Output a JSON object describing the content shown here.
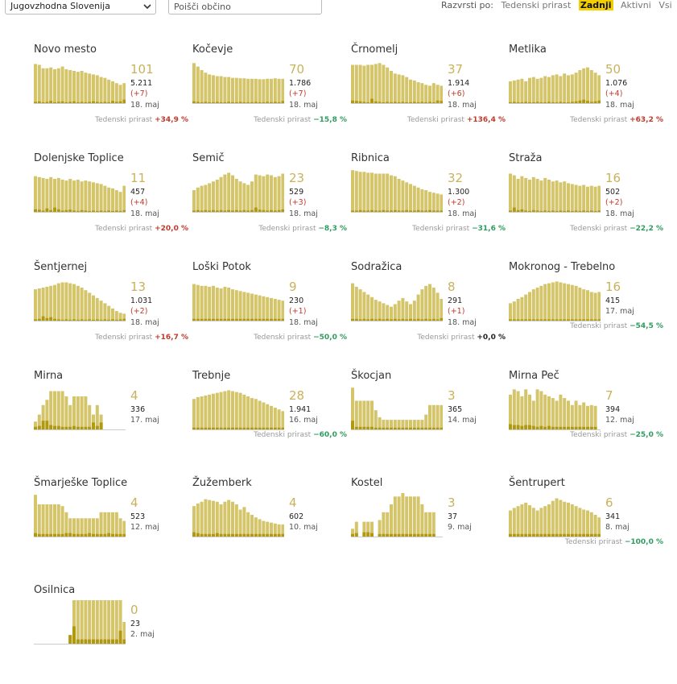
{
  "toolbar": {
    "region": "Jugovzhodna Slovenija",
    "search_placeholder": "Poišči občino",
    "sort_label": "Razvrsti po:",
    "sort_options": [
      {
        "label": "Tedenski prirast",
        "active": false
      },
      {
        "label": "Zadnji",
        "active": true
      },
      {
        "label": "Aktivni",
        "active": false
      },
      {
        "label": "Vsi",
        "active": false
      }
    ]
  },
  "colors": {
    "bar": "#d4c46a",
    "bar_dark": "#b0980f",
    "accent": "#f2cf00",
    "positive": "#c0392b",
    "negative": "#2e9c5e"
  },
  "growth_label": "Tedenski prirast",
  "municipalities": [
    {
      "name": "Novo mesto",
      "active": "101",
      "total": "5.211",
      "delta": "(+7)",
      "date": "18. maj",
      "growth": "+34,9 %",
      "growth_sign": "pos",
      "bars": [
        90,
        88,
        80,
        80,
        82,
        78,
        80,
        84,
        78,
        76,
        74,
        72,
        74,
        70,
        68,
        66,
        64,
        60,
        58,
        54,
        50,
        46,
        42,
        46
      ],
      "new": [
        3,
        4,
        2,
        3,
        5,
        2,
        3,
        4,
        2,
        3,
        4,
        2,
        3,
        2,
        3,
        4,
        3,
        2,
        3,
        2,
        5,
        3,
        4,
        8
      ]
    },
    {
      "name": "Kočevje",
      "active": "70",
      "total": "1.786",
      "delta": "(+7)",
      "date": "18. maj",
      "growth": "−15,8 %",
      "growth_sign": "neg",
      "bars": [
        92,
        84,
        76,
        70,
        66,
        64,
        62,
        62,
        60,
        60,
        58,
        58,
        57,
        57,
        56,
        56,
        56,
        55,
        55,
        56,
        56,
        57,
        56,
        56
      ],
      "new": [
        4,
        3,
        2,
        3,
        2,
        2,
        3,
        2,
        2,
        3,
        2,
        2,
        3,
        2,
        2,
        2,
        3,
        2,
        2,
        3,
        2,
        3,
        2,
        5
      ]
    },
    {
      "name": "Črnomelj",
      "active": "37",
      "total": "1.914",
      "delta": "(+6)",
      "date": "18. maj",
      "growth": "+136,4 %",
      "growth_sign": "pos",
      "bars": [
        88,
        88,
        88,
        86,
        88,
        88,
        90,
        92,
        88,
        82,
        74,
        68,
        66,
        64,
        60,
        54,
        52,
        48,
        46,
        42,
        40,
        46,
        42,
        40
      ],
      "new": [
        6,
        5,
        4,
        3,
        2,
        10,
        4,
        3,
        2,
        3,
        2,
        3,
        2,
        3,
        2,
        2,
        3,
        2,
        3,
        2,
        3,
        2,
        6,
        5
      ]
    },
    {
      "name": "Metlika",
      "active": "50",
      "total": "1.076",
      "delta": "(+4)",
      "date": "18. maj",
      "growth": "+63,2 %",
      "growth_sign": "pos",
      "bars": [
        50,
        52,
        54,
        56,
        50,
        58,
        60,
        56,
        58,
        62,
        60,
        64,
        66,
        62,
        68,
        64,
        66,
        70,
        76,
        80,
        82,
        76,
        70,
        64
      ],
      "new": [
        2,
        3,
        2,
        2,
        3,
        2,
        2,
        3,
        2,
        2,
        3,
        2,
        2,
        3,
        2,
        2,
        3,
        4,
        6,
        8,
        5,
        3,
        4,
        6
      ]
    },
    {
      "name": "Dolenjske Toplice",
      "active": "11",
      "total": "457",
      "delta": "(+4)",
      "date": "18. maj",
      "growth": "+20,0 %",
      "growth_sign": "pos",
      "bars": [
        82,
        80,
        78,
        76,
        80,
        76,
        78,
        74,
        72,
        76,
        72,
        74,
        70,
        72,
        70,
        68,
        66,
        64,
        60,
        56,
        54,
        50,
        46,
        60
      ],
      "new": [
        6,
        5,
        3,
        8,
        4,
        10,
        6,
        3,
        4,
        5,
        3,
        2,
        4,
        3,
        2,
        3,
        2,
        3,
        2,
        3,
        2,
        3,
        2,
        4
      ]
    },
    {
      "name": "Semič",
      "active": "23",
      "total": "529",
      "delta": "(+3)",
      "date": "18. maj",
      "growth": "−8,3 %",
      "growth_sign": "neg",
      "bars": [
        50,
        56,
        60,
        62,
        66,
        70,
        74,
        80,
        86,
        90,
        84,
        76,
        70,
        66,
        62,
        70,
        86,
        84,
        82,
        86,
        84,
        80,
        82,
        88
      ],
      "new": [
        3,
        4,
        3,
        4,
        3,
        4,
        3,
        4,
        3,
        4,
        3,
        4,
        3,
        4,
        3,
        4,
        10,
        5,
        4,
        3,
        4,
        3,
        4,
        6
      ]
    },
    {
      "name": "Ribnica",
      "active": "32",
      "total": "1.300",
      "delta": "(+2)",
      "date": "18. maj",
      "growth": "−31,6 %",
      "growth_sign": "neg",
      "bars": [
        96,
        94,
        92,
        92,
        90,
        90,
        88,
        88,
        88,
        88,
        84,
        82,
        76,
        72,
        68,
        64,
        60,
        56,
        52,
        50,
        46,
        44,
        42,
        40
      ],
      "new": [
        3,
        3,
        4,
        3,
        3,
        4,
        3,
        3,
        4,
        3,
        3,
        4,
        3,
        3,
        4,
        3,
        3,
        4,
        3,
        3,
        4,
        3,
        3,
        3
      ]
    },
    {
      "name": "Straža",
      "active": "16",
      "total": "502",
      "delta": "(+2)",
      "date": "18. maj",
      "growth": "−22,2 %",
      "growth_sign": "neg",
      "bars": [
        88,
        84,
        76,
        82,
        78,
        74,
        80,
        76,
        72,
        78,
        74,
        70,
        72,
        68,
        70,
        66,
        64,
        62,
        60,
        62,
        58,
        60,
        58,
        60
      ],
      "new": [
        3,
        10,
        4,
        6,
        3,
        2,
        4,
        3,
        2,
        3,
        2,
        3,
        2,
        3,
        2,
        3,
        2,
        3,
        2,
        3,
        2,
        3,
        2,
        3
      ]
    },
    {
      "name": "Šentjernej",
      "active": "13",
      "total": "1.031",
      "delta": "(+2)",
      "date": "18. maj",
      "growth": "+16,7 %",
      "growth_sign": "pos",
      "bars": [
        72,
        74,
        76,
        78,
        80,
        82,
        86,
        88,
        88,
        86,
        84,
        80,
        76,
        70,
        64,
        58,
        52,
        46,
        40,
        34,
        28,
        22,
        18,
        16
      ],
      "new": [
        3,
        4,
        10,
        6,
        8,
        4,
        3,
        2,
        3,
        2,
        3,
        2,
        3,
        2,
        3,
        2,
        3,
        2,
        3,
        2,
        3,
        2,
        3,
        4
      ]
    },
    {
      "name": "Loški Potok",
      "active": "9",
      "total": "230",
      "delta": "(+1)",
      "date": "18. maj",
      "growth": "−50,0 %",
      "growth_sign": "neg",
      "bars": [
        84,
        82,
        80,
        80,
        78,
        80,
        76,
        74,
        78,
        76,
        72,
        70,
        68,
        66,
        64,
        62,
        60,
        58,
        56,
        54,
        52,
        50,
        48,
        46
      ],
      "new": [
        4,
        4,
        4,
        4,
        4,
        4,
        4,
        4,
        4,
        4,
        4,
        4,
        4,
        4,
        4,
        4,
        4,
        4,
        4,
        4,
        4,
        4,
        4,
        4
      ]
    },
    {
      "name": "Sodražica",
      "active": "8",
      "total": "291",
      "delta": "(+1)",
      "date": "18. maj",
      "growth": "+0,0 %",
      "growth_sign": "zero",
      "bars": [
        86,
        78,
        72,
        66,
        60,
        54,
        48,
        44,
        40,
        36,
        32,
        38,
        46,
        52,
        44,
        38,
        46,
        60,
        72,
        80,
        84,
        76,
        64,
        50
      ],
      "new": [
        4,
        4,
        3,
        4,
        3,
        4,
        3,
        4,
        3,
        4,
        3,
        4,
        3,
        4,
        3,
        4,
        3,
        4,
        3,
        4,
        3,
        4,
        3,
        6
      ]
    },
    {
      "name": "Mokronog - Trebelno",
      "active": "16",
      "total": "415",
      "delta": "",
      "date": "17. maj",
      "growth": "−54,5 %",
      "growth_sign": "neg",
      "bars": [
        40,
        44,
        50,
        54,
        60,
        66,
        72,
        76,
        80,
        84,
        86,
        88,
        90,
        88,
        86,
        84,
        82,
        80,
        76,
        72,
        70,
        66,
        64,
        66
      ],
      "new": [
        3,
        3,
        3,
        3,
        3,
        3,
        3,
        3,
        3,
        3,
        3,
        3,
        3,
        3,
        3,
        3,
        3,
        3,
        3,
        3,
        3,
        3,
        3,
        3
      ]
    },
    {
      "name": "Mirna",
      "active": "4",
      "total": "336",
      "delta": "",
      "date": "17. maj",
      "growth": "",
      "growth_sign": "zero",
      "bars": [
        18,
        34,
        56,
        68,
        88,
        88,
        88,
        88,
        76,
        56,
        76,
        76,
        76,
        76,
        56,
        34,
        56,
        34,
        0,
        0,
        0,
        0,
        0,
        0
      ],
      "new": [
        6,
        8,
        20,
        20,
        10,
        8,
        8,
        6,
        6,
        6,
        8,
        6,
        6,
        6,
        6,
        16,
        8,
        16,
        0,
        0,
        0,
        0,
        0,
        0
      ]
    },
    {
      "name": "Trebnje",
      "active": "28",
      "total": "1.941",
      "delta": "",
      "date": "16. maj",
      "growth": "−60,0 %",
      "growth_sign": "neg",
      "bars": [
        70,
        74,
        76,
        78,
        80,
        82,
        84,
        86,
        88,
        90,
        88,
        86,
        84,
        80,
        76,
        72,
        70,
        66,
        62,
        58,
        54,
        50,
        46,
        42
      ],
      "new": [
        4,
        4,
        4,
        4,
        4,
        4,
        4,
        4,
        4,
        4,
        4,
        4,
        4,
        4,
        4,
        4,
        4,
        4,
        4,
        4,
        4,
        4,
        4,
        4
      ]
    },
    {
      "name": "Škocjan",
      "active": "3",
      "total": "365",
      "delta": "",
      "date": "14. maj",
      "growth": "",
      "growth_sign": "zero",
      "bars": [
        96,
        66,
        66,
        66,
        66,
        66,
        44,
        28,
        22,
        22,
        22,
        22,
        22,
        22,
        22,
        22,
        22,
        22,
        22,
        34,
        56,
        56,
        56,
        56
      ],
      "new": [
        20,
        6,
        6,
        6,
        6,
        6,
        4,
        4,
        4,
        4,
        4,
        4,
        4,
        4,
        4,
        4,
        4,
        4,
        4,
        4,
        4,
        4,
        4,
        4
      ]
    },
    {
      "name": "Mirna Peč",
      "active": "7",
      "total": "394",
      "delta": "",
      "date": "12. maj",
      "growth": "−25,0 %",
      "growth_sign": "neg",
      "bars": [
        80,
        92,
        88,
        76,
        92,
        80,
        66,
        92,
        88,
        80,
        76,
        72,
        66,
        80,
        72,
        66,
        56,
        66,
        56,
        62,
        54,
        56,
        54,
        0
      ],
      "new": [
        12,
        10,
        10,
        8,
        10,
        10,
        8,
        6,
        8,
        6,
        8,
        6,
        6,
        6,
        6,
        6,
        6,
        6,
        6,
        6,
        6,
        6,
        6,
        0
      ]
    },
    {
      "name": "Šmarješke Toplice",
      "active": "4",
      "total": "523",
      "delta": "",
      "date": "12. maj",
      "growth": "",
      "growth_sign": "zero",
      "bars": [
        96,
        74,
        74,
        74,
        74,
        74,
        74,
        70,
        56,
        42,
        42,
        42,
        42,
        42,
        42,
        42,
        42,
        56,
        56,
        56,
        56,
        56,
        42,
        36
      ],
      "new": [
        8,
        6,
        6,
        6,
        6,
        6,
        6,
        6,
        8,
        8,
        6,
        6,
        6,
        6,
        8,
        6,
        6,
        6,
        6,
        8,
        6,
        6,
        6,
        6
      ]
    },
    {
      "name": "Žužemberk",
      "active": "4",
      "total": "602",
      "delta": "",
      "date": "10. maj",
      "growth": "",
      "growth_sign": "zero",
      "bars": [
        70,
        76,
        80,
        86,
        84,
        82,
        80,
        74,
        80,
        84,
        80,
        74,
        62,
        68,
        56,
        50,
        44,
        40,
        36,
        34,
        32,
        30,
        28,
        28
      ],
      "new": [
        10,
        8,
        6,
        6,
        6,
        6,
        8,
        6,
        6,
        6,
        6,
        6,
        6,
        6,
        6,
        6,
        6,
        6,
        6,
        6,
        6,
        6,
        6,
        6
      ]
    },
    {
      "name": "Kostel",
      "active": "3",
      "total": "37",
      "delta": "",
      "date": "9. maj",
      "growth": "",
      "growth_sign": "zero",
      "bars": [
        18,
        34,
        0,
        34,
        34,
        34,
        0,
        38,
        56,
        56,
        74,
        92,
        92,
        100,
        92,
        92,
        92,
        92,
        74,
        56,
        56,
        56,
        0,
        0
      ],
      "new": [
        6,
        8,
        0,
        10,
        10,
        8,
        0,
        6,
        6,
        6,
        6,
        6,
        6,
        6,
        6,
        6,
        6,
        6,
        6,
        6,
        6,
        6,
        0,
        0
      ]
    },
    {
      "name": "Šentrupert",
      "active": "6",
      "total": "341",
      "delta": "",
      "date": "8. maj",
      "growth": "−100,0 %",
      "growth_sign": "neg",
      "bars": [
        60,
        66,
        70,
        74,
        78,
        72,
        66,
        60,
        66,
        70,
        74,
        82,
        88,
        84,
        80,
        78,
        74,
        70,
        66,
        62,
        60,
        56,
        50,
        44
      ],
      "new": [
        6,
        6,
        6,
        6,
        6,
        6,
        6,
        6,
        6,
        6,
        6,
        6,
        6,
        6,
        6,
        6,
        6,
        6,
        6,
        6,
        6,
        6,
        6,
        6
      ]
    },
    {
      "name": "Osilnica",
      "active": "0",
      "total": "23",
      "delta": "",
      "date": "2. maj",
      "growth": "",
      "growth_sign": "zero",
      "bars": [
        0,
        0,
        0,
        0,
        0,
        0,
        0,
        0,
        0,
        20,
        100,
        100,
        100,
        100,
        100,
        100,
        100,
        100,
        100,
        100,
        100,
        100,
        100,
        50
      ],
      "new": [
        0,
        0,
        0,
        0,
        0,
        0,
        0,
        0,
        0,
        20,
        40,
        10,
        10,
        10,
        10,
        10,
        10,
        10,
        10,
        10,
        10,
        10,
        30,
        10
      ]
    }
  ]
}
